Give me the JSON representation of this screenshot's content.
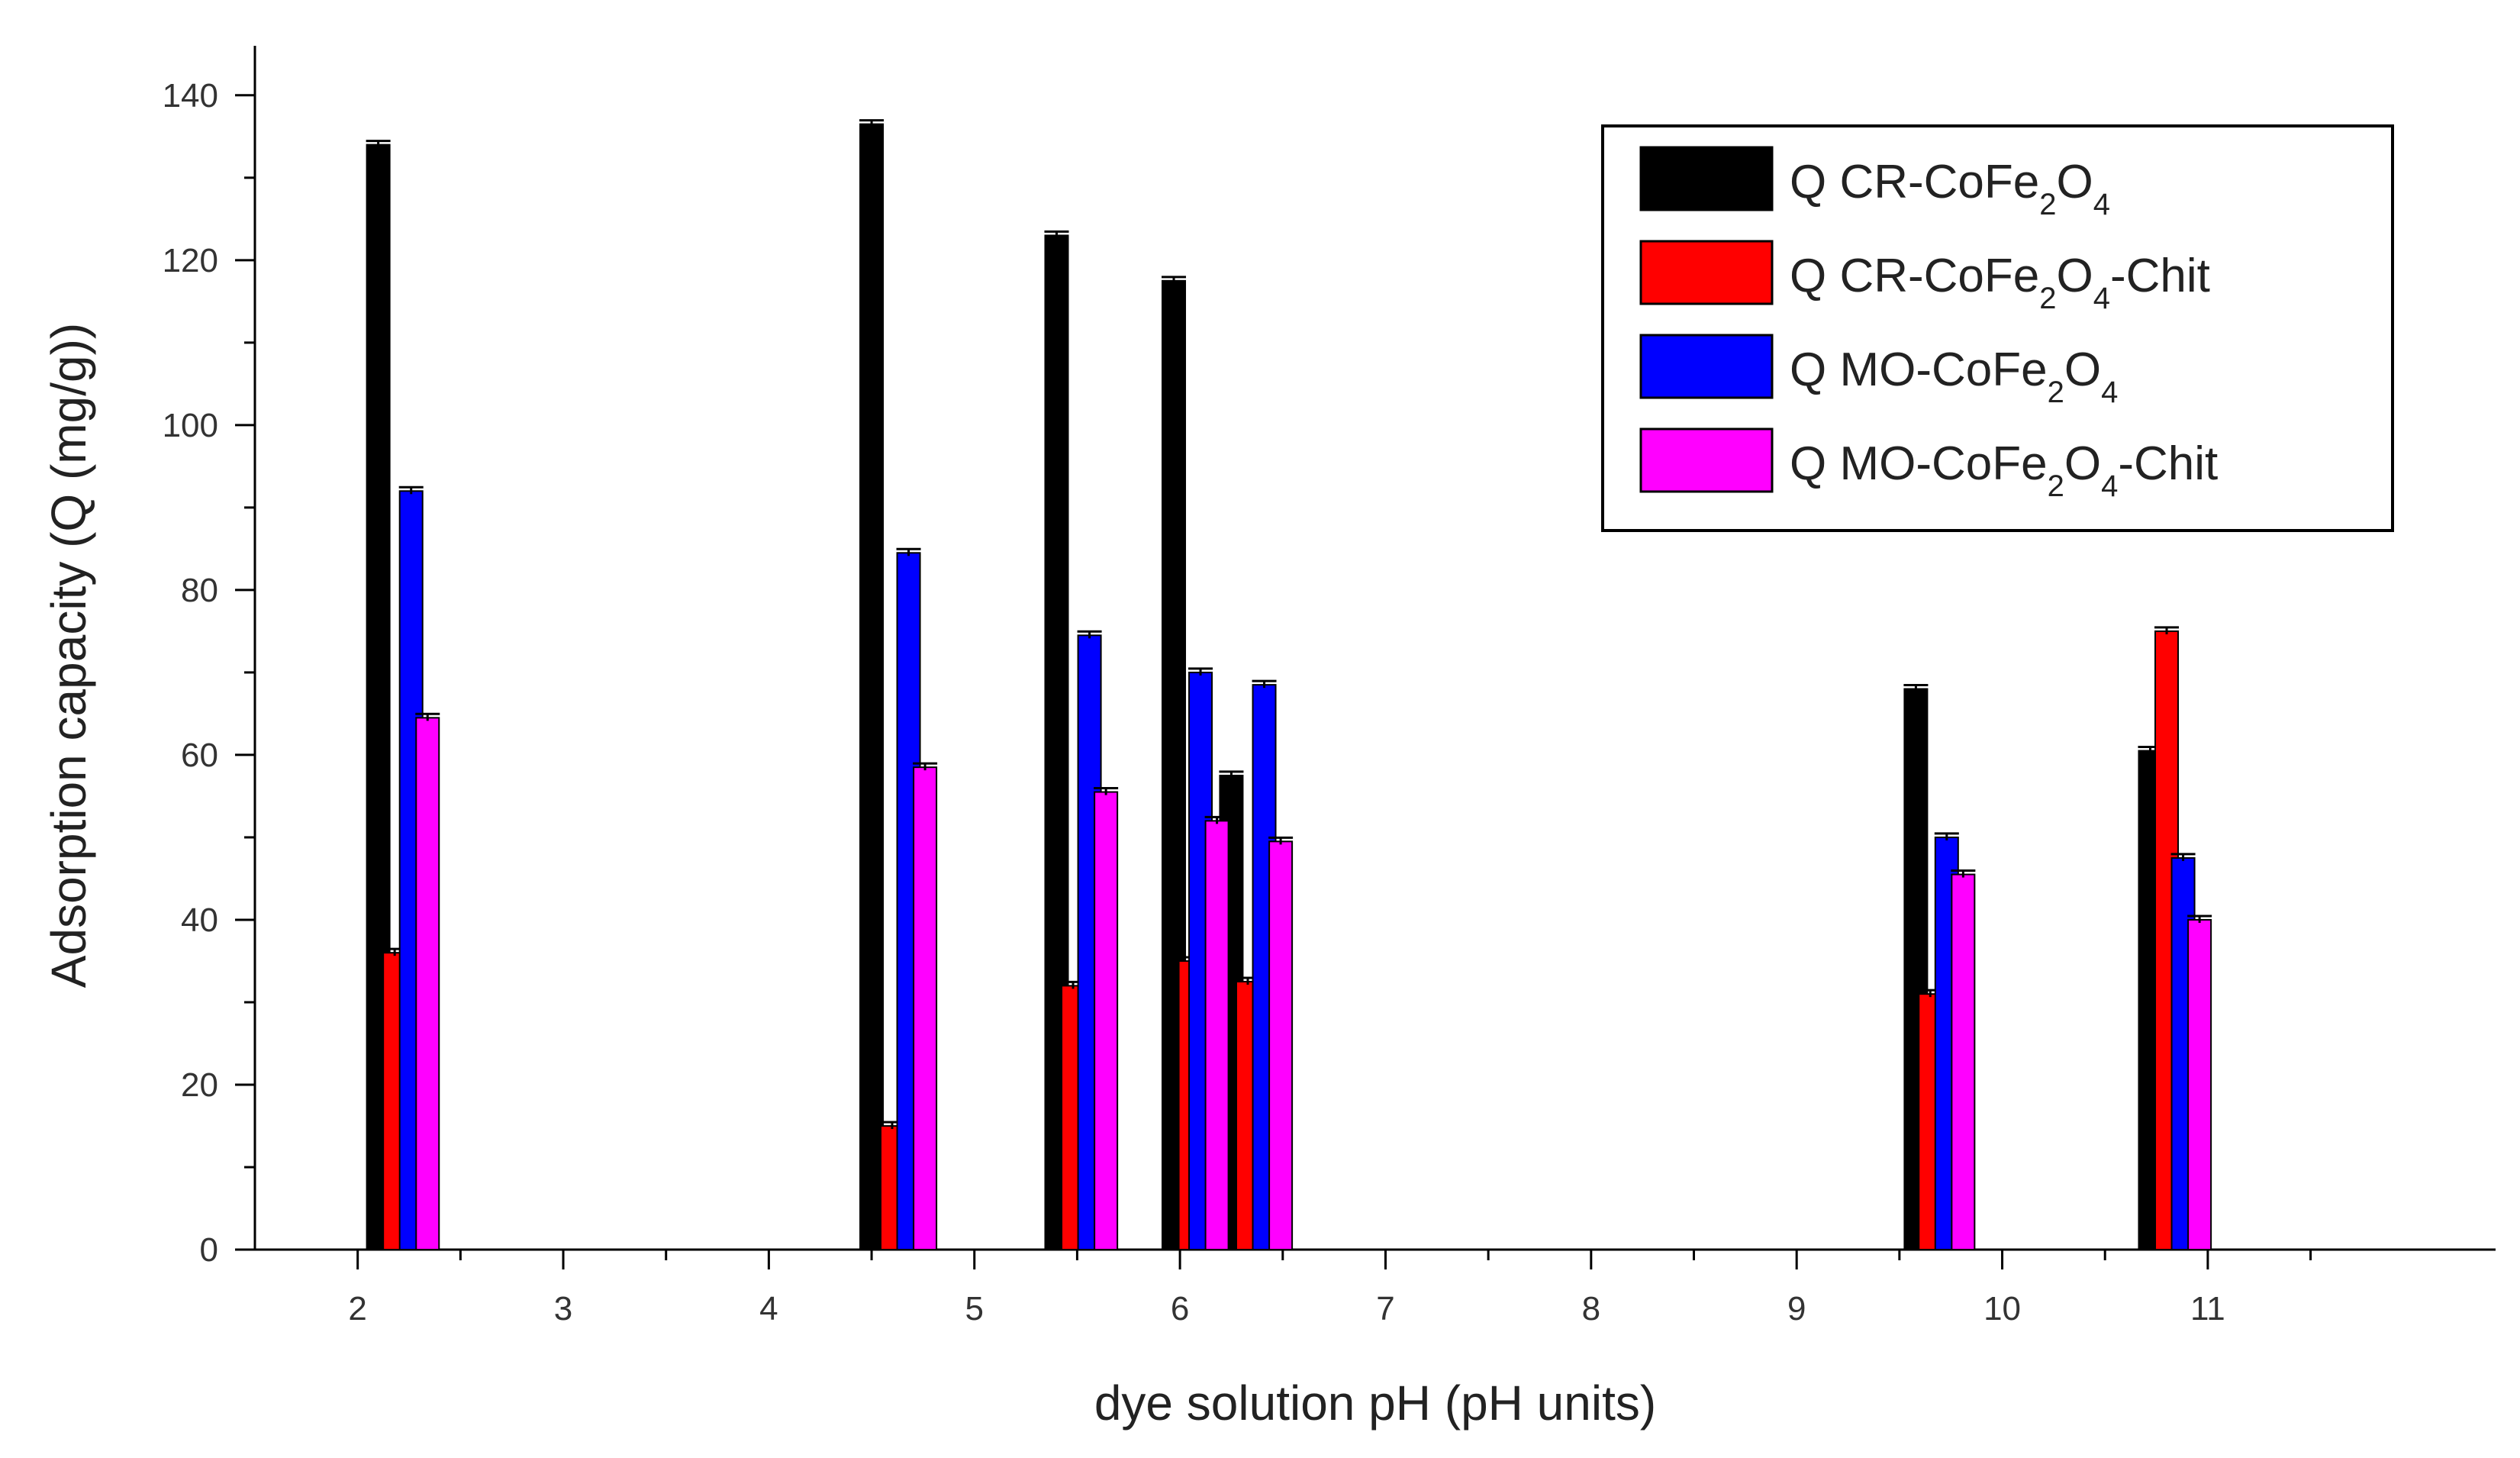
{
  "chart_data": {
    "type": "bar",
    "title": "",
    "xlabel": "dye solution pH (pH units)",
    "ylabel": "Adsorption capacity (Q (mg/g))",
    "xlim": [
      1.5,
      12.4
    ],
    "ylim": [
      0,
      146
    ],
    "xticks": [
      2,
      3,
      4,
      5,
      6,
      7,
      8,
      9,
      10,
      11
    ],
    "yticks": [
      0,
      20,
      40,
      60,
      80,
      100,
      120,
      140
    ],
    "grid": false,
    "legend_position": "top-right",
    "series": [
      {
        "name": "Q CR-CoFe2O4",
        "legend_parts": [
          [
            "Q CR-CoFe",
            ""
          ],
          [
            "2",
            "sub"
          ],
          [
            "O",
            ""
          ],
          [
            "4",
            "sub"
          ]
        ],
        "color": "#000000",
        "x": [
          2.1,
          4.5,
          5.4,
          5.97,
          6.25,
          9.58,
          10.72
        ],
        "values": [
          134,
          136.5,
          123,
          117.5,
          57.5,
          68,
          60.5
        ]
      },
      {
        "name": "Q CR-CoFe2O4-Chit",
        "legend_parts": [
          [
            "Q CR-CoFe",
            ""
          ],
          [
            "2",
            "sub"
          ],
          [
            "O",
            ""
          ],
          [
            "4",
            "sub"
          ],
          [
            "-Chit",
            ""
          ]
        ],
        "color": "#ff0000",
        "x": [
          2.18,
          4.6,
          5.48,
          6.05,
          6.33,
          9.65,
          10.8
        ],
        "values": [
          36,
          15,
          32,
          35,
          32.5,
          31,
          75
        ]
      },
      {
        "name": "Q MO-CoFe2O4",
        "legend_parts": [
          [
            "Q MO-CoFe",
            ""
          ],
          [
            "2",
            "sub"
          ],
          [
            "O",
            ""
          ],
          [
            "4",
            "sub"
          ]
        ],
        "color": "#0000ff",
        "x": [
          2.26,
          4.68,
          5.56,
          6.1,
          6.41,
          9.73,
          10.88
        ],
        "values": [
          92,
          84.5,
          74.5,
          70,
          68.5,
          50,
          47.5
        ]
      },
      {
        "name": "Q MO-CoFe2O4-Chit",
        "legend_parts": [
          [
            "Q MO-CoFe",
            ""
          ],
          [
            "2",
            "sub"
          ],
          [
            "O",
            ""
          ],
          [
            "4",
            "sub"
          ],
          [
            "-Chit",
            ""
          ]
        ],
        "color": "#ff00ff",
        "x": [
          2.34,
          4.76,
          5.64,
          6.18,
          6.49,
          9.81,
          10.96
        ],
        "values": [
          64.5,
          58.5,
          55.5,
          52,
          49.5,
          45.5,
          40
        ]
      }
    ]
  }
}
